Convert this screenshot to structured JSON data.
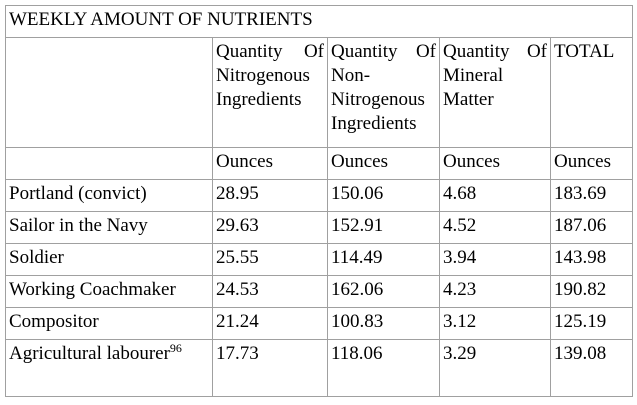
{
  "table": {
    "title": "WEEKLY AMOUNT OF NUTRIENTS",
    "headers": [
      "Quantity Of Nitrogenous Ingredients",
      "Quantity Of Non-Nitrogenous Ingredients",
      "Quantity Of Mineral Matter",
      "TOTAL"
    ],
    "units": [
      "Ounces",
      "Ounces",
      "Ounces",
      "Ounces"
    ],
    "rows": [
      {
        "label": "Portland (convict)",
        "values": [
          28.95,
          150.06,
          4.68,
          183.69
        ]
      },
      {
        "label": "Sailor in the Navy",
        "values": [
          29.63,
          152.91,
          4.52,
          187.06
        ]
      },
      {
        "label": "Soldier",
        "values": [
          25.55,
          114.49,
          3.94,
          143.98
        ]
      },
      {
        "label": "Working Coachmaker",
        "values": [
          24.53,
          162.06,
          4.23,
          190.82
        ]
      },
      {
        "label": "Compositor",
        "values": [
          21.24,
          100.83,
          3.12,
          125.19
        ]
      },
      {
        "label": "Agricultural labourer",
        "footnote": "96",
        "values": [
          17.73,
          118.06,
          3.29,
          139.08
        ]
      }
    ]
  }
}
